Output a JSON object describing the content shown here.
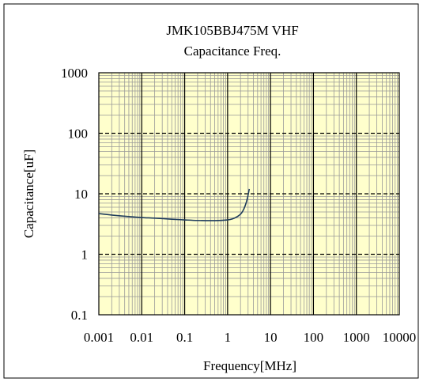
{
  "chart_data": {
    "type": "line",
    "title": "JMK105BBJ475M VHF",
    "subtitle": "Capacitance Freq.",
    "xlabel": "Frequency[MHz]",
    "ylabel": "Capacitance[uF]",
    "x_scale": "log",
    "y_scale": "log",
    "xlim": [
      0.001,
      10000
    ],
    "ylim": [
      0.1,
      1000
    ],
    "x_ticks": [
      "0.001",
      "0.01",
      "0.1",
      "1",
      "10",
      "100",
      "1000",
      "10000"
    ],
    "y_ticks": [
      "0.1",
      "1",
      "10",
      "100",
      "1000"
    ],
    "grid": true,
    "legend": "none",
    "series": [
      {
        "x": [
          0.001,
          0.002,
          0.005,
          0.01,
          0.02,
          0.05,
          0.1,
          0.2,
          0.5,
          1.0,
          1.3,
          1.6,
          2.0,
          2.3,
          2.6,
          2.9,
          3.2
        ],
        "y": [
          4.7,
          4.45,
          4.2,
          4.05,
          3.95,
          3.8,
          3.7,
          3.62,
          3.6,
          3.7,
          3.85,
          4.1,
          4.6,
          5.3,
          6.5,
          8.5,
          12.0
        ]
      }
    ]
  },
  "colors": {
    "plot_background": "#ffffcc",
    "minor_grid": "#999999",
    "major_grid": "#000000",
    "curve": "#1f3c5c",
    "border": "#000000"
  }
}
